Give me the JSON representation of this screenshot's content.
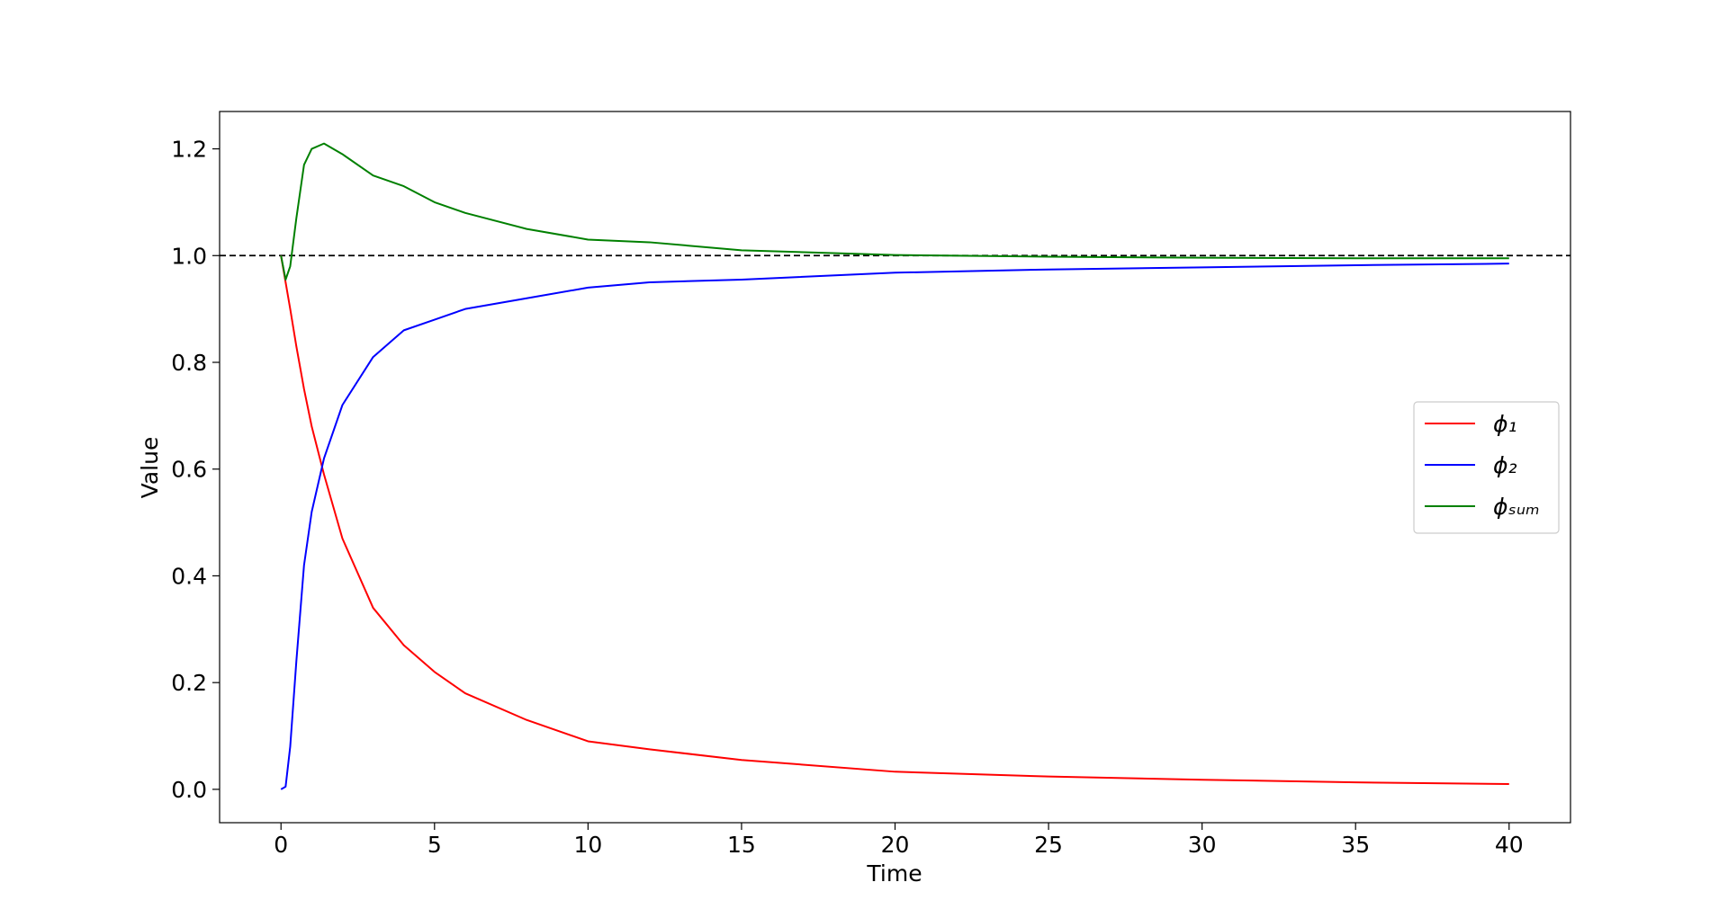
{
  "chart_data": {
    "type": "line",
    "xlabel": "Time",
    "ylabel": "Value",
    "x": [
      0,
      0.15,
      0.3,
      0.5,
      0.75,
      1,
      1.4,
      2,
      3,
      4,
      5,
      6,
      8,
      10,
      12,
      15,
      20,
      25,
      30,
      35,
      40
    ],
    "series": [
      {
        "name": "ϕ₁",
        "color": "#ff0000",
        "values": [
          1.0,
          0.95,
          0.9,
          0.83,
          0.75,
          0.68,
          0.59,
          0.47,
          0.34,
          0.27,
          0.22,
          0.18,
          0.13,
          0.09,
          0.075,
          0.055,
          0.033,
          0.024,
          0.018,
          0.013,
          0.01
        ]
      },
      {
        "name": "ϕ₂",
        "color": "#0000ff",
        "values": [
          0,
          0.005,
          0.08,
          0.24,
          0.42,
          0.52,
          0.62,
          0.72,
          0.81,
          0.86,
          0.88,
          0.9,
          0.92,
          0.94,
          0.95,
          0.955,
          0.968,
          0.974,
          0.978,
          0.982,
          0.985
        ]
      },
      {
        "name": "ϕₛᵤₘ",
        "color": "#008000",
        "values": [
          1.0,
          0.955,
          0.98,
          1.07,
          1.17,
          1.2,
          1.21,
          1.19,
          1.15,
          1.13,
          1.1,
          1.08,
          1.05,
          1.03,
          1.025,
          1.01,
          1.001,
          0.998,
          0.996,
          0.995,
          0.995
        ]
      }
    ],
    "hline": 1.0,
    "xlim": [
      -2,
      42
    ],
    "xticks": [
      0,
      5,
      10,
      15,
      20,
      25,
      30,
      35,
      40
    ],
    "ylim": [
      -0.0625,
      1.27
    ],
    "yticks": [
      {
        "value": 0,
        "label": "0.0"
      },
      {
        "value": 0.2,
        "label": "0.2"
      },
      {
        "value": 0.4,
        "label": "0.4"
      },
      {
        "value": 0.6,
        "label": "0.6"
      },
      {
        "value": 0.8,
        "label": "0.8"
      },
      {
        "value": 1.0,
        "label": "1.0"
      },
      {
        "value": 1.2,
        "label": "1.2"
      }
    ],
    "legend": "right",
    "grid": false
  }
}
